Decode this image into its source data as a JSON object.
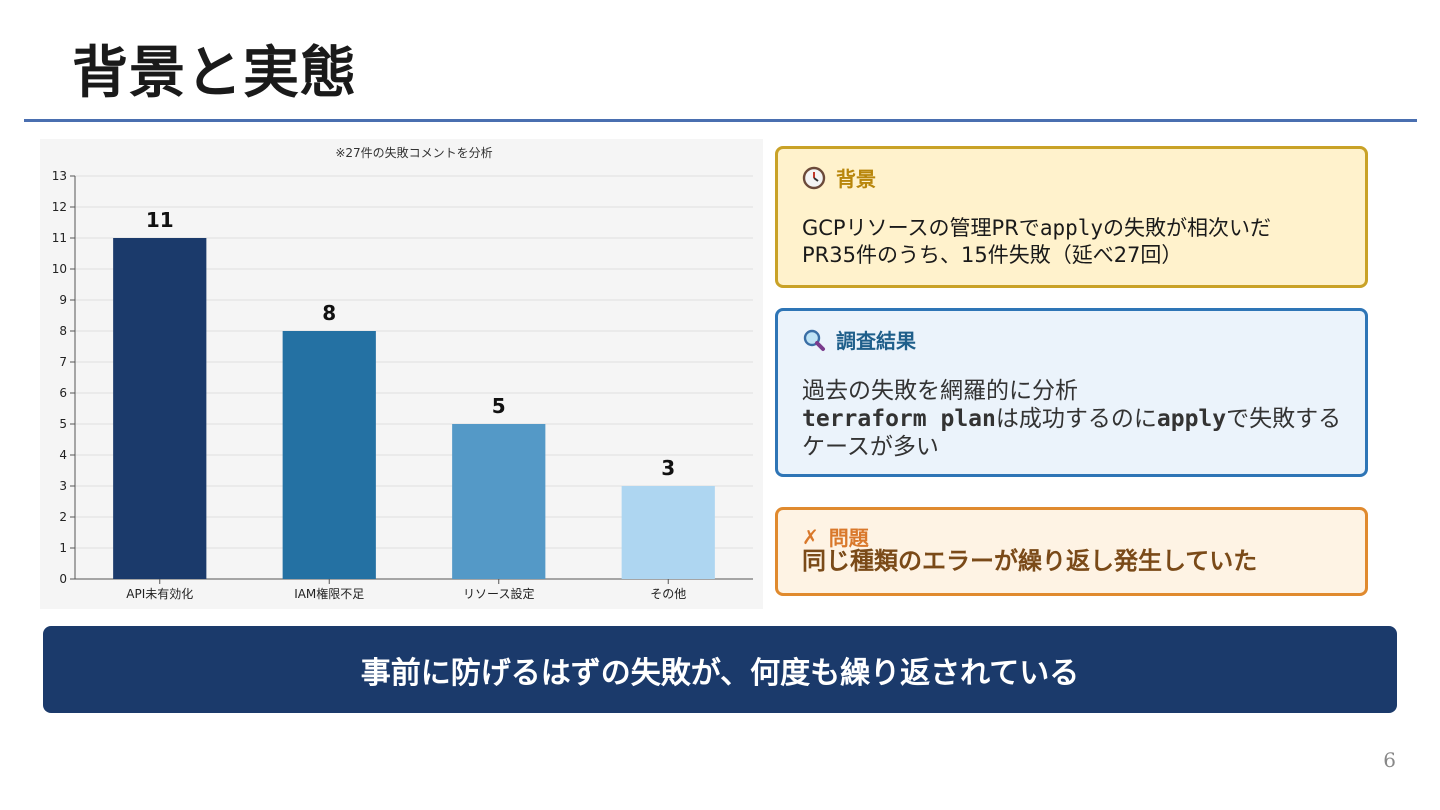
{
  "slide": {
    "title": "背景と実態",
    "page_number": "6"
  },
  "chart_data": {
    "type": "bar",
    "subtitle": "※27件の失敗コメントを分析",
    "categories": [
      "API未有効化",
      "IAM権限不足",
      "リソース設定",
      "その他"
    ],
    "values": [
      11,
      8,
      5,
      3
    ],
    "data_labels": [
      "11",
      "8",
      "5",
      "3"
    ],
    "bar_colors": [
      "#1b3a6b",
      "#2471a3",
      "#5499c7",
      "#aed6f1"
    ],
    "ylim": [
      0,
      13
    ],
    "yticks": [
      "0",
      "1",
      "2",
      "3",
      "4",
      "5",
      "6",
      "7",
      "8",
      "9",
      "10",
      "11",
      "12",
      "13"
    ],
    "grid": true,
    "xlabel": "",
    "ylabel": ""
  },
  "cards": {
    "background": {
      "icon": "clock-icon",
      "heading": "背景",
      "line1_a": "GCPリソースの管理PRで",
      "line1_code": "apply",
      "line1_b": "の失敗が相次いだ",
      "line2": "PR35件のうち、15件失敗（延べ27回）"
    },
    "research": {
      "icon": "magnifier-icon",
      "heading": "調査結果",
      "line1": "過去の失敗を網羅的に分析",
      "line2_code1": "terraform plan",
      "line2_a": "は成功するのに",
      "line2_code2": "apply",
      "line2_b": "で失敗する",
      "line3": "ケースが多い"
    },
    "problem": {
      "icon": "cross-icon",
      "mark": "✗",
      "heading": "問題",
      "body": "同じ種類のエラーが繰り返し発生していた"
    }
  },
  "banner": {
    "text": "事前に防げるはずの失敗が、何度も繰り返されている"
  },
  "colors": {
    "title_rule": "#4a6fb0",
    "banner": "#1b3a6b"
  }
}
